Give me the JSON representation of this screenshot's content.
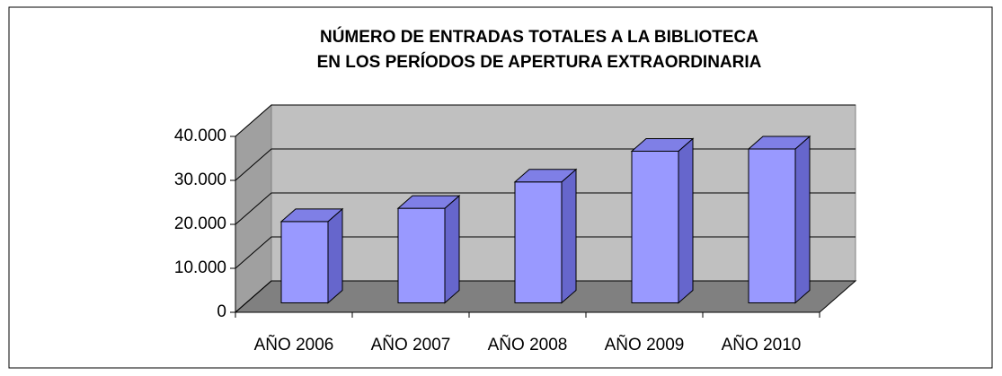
{
  "chart_data": {
    "type": "bar3d",
    "title": [
      "NÚMERO DE ENTRADAS TOTALES A LA BIBLIOTECA",
      "EN LOS PERÍODOS DE APERTURA EXTRAORDINARIA"
    ],
    "categories": [
      "AÑO 2006",
      "AÑO 2007",
      "AÑO 2008",
      "AÑO 2009",
      "AÑO 2010"
    ],
    "values": [
      18500,
      21500,
      27500,
      34500,
      35000
    ],
    "color": "#9999ff",
    "ylim": [
      0,
      40000
    ],
    "yticks": [
      0,
      {
        "value": 10000,
        "label": "10.000"
      },
      {
        "value": 20000,
        "label": "20.000"
      },
      {
        "value": 30000,
        "label": "30.000"
      },
      {
        "value": 40000,
        "label": "40.000"
      }
    ],
    "grid": true
  }
}
